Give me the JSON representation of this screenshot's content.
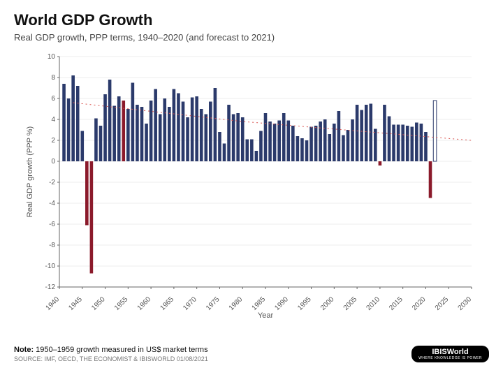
{
  "title": "World GDP Growth",
  "subtitle": "Real GDP growth, PPP terms, 1940–2020 (and forecast to 2021)",
  "chart": {
    "type": "bar",
    "x_label": "Year",
    "y_label": "Real GDP growth (PPP %)",
    "x_domain": [
      1940,
      2030
    ],
    "y_domain": [
      -12,
      10
    ],
    "y_ticks": [
      -12,
      -10,
      -8,
      -6,
      -4,
      -2,
      0,
      2,
      4,
      6,
      8,
      10
    ],
    "x_ticks": [
      1940,
      1945,
      1950,
      1955,
      1960,
      1965,
      1970,
      1975,
      1980,
      1985,
      1990,
      1995,
      2000,
      2005,
      2010,
      2015,
      2020,
      2025,
      2030
    ],
    "colors": {
      "positive": "#2b3a6b",
      "negative": "#8b1a2b",
      "forecast_fill": "#ffffff",
      "forecast_stroke": "#2b3a6b",
      "trend": "#d9534f",
      "grid": "#999999",
      "axis": "#666666",
      "background": "#ffffff"
    },
    "bar_width_ratio": 0.7,
    "trend": {
      "dash": "2,4",
      "width": 1,
      "points": [
        [
          1943,
          5.6
        ],
        [
          1980,
          3.8
        ],
        [
          2030,
          2.0
        ]
      ]
    },
    "series": [
      {
        "year": 1941,
        "v": 7.4
      },
      {
        "year": 1942,
        "v": 6.0
      },
      {
        "year": 1943,
        "v": 8.2
      },
      {
        "year": 1944,
        "v": 7.2
      },
      {
        "year": 1945,
        "v": 2.9
      },
      {
        "year": 1946,
        "v": -6.1
      },
      {
        "year": 1947,
        "v": -10.7
      },
      {
        "year": 1948,
        "v": 4.1
      },
      {
        "year": 1949,
        "v": 3.4
      },
      {
        "year": 1950,
        "v": 6.4
      },
      {
        "year": 1951,
        "v": 7.8
      },
      {
        "year": 1952,
        "v": 5.3
      },
      {
        "year": 1953,
        "v": 6.2
      },
      {
        "year": 1954,
        "v": 5.8,
        "alt": true
      },
      {
        "year": 1955,
        "v": 5.0
      },
      {
        "year": 1956,
        "v": 7.5
      },
      {
        "year": 1957,
        "v": 5.4
      },
      {
        "year": 1958,
        "v": 5.2
      },
      {
        "year": 1959,
        "v": 3.6
      },
      {
        "year": 1960,
        "v": 5.8
      },
      {
        "year": 1961,
        "v": 6.9
      },
      {
        "year": 1962,
        "v": 4.5
      },
      {
        "year": 1963,
        "v": 6.0
      },
      {
        "year": 1964,
        "v": 5.2
      },
      {
        "year": 1965,
        "v": 6.9
      },
      {
        "year": 1966,
        "v": 6.5
      },
      {
        "year": 1967,
        "v": 5.7
      },
      {
        "year": 1968,
        "v": 4.2
      },
      {
        "year": 1969,
        "v": 6.1
      },
      {
        "year": 1970,
        "v": 6.2
      },
      {
        "year": 1971,
        "v": 5.0
      },
      {
        "year": 1972,
        "v": 4.5
      },
      {
        "year": 1973,
        "v": 5.7
      },
      {
        "year": 1974,
        "v": 7.0
      },
      {
        "year": 1975,
        "v": 2.8
      },
      {
        "year": 1976,
        "v": 1.7
      },
      {
        "year": 1977,
        "v": 5.4
      },
      {
        "year": 1978,
        "v": 4.5
      },
      {
        "year": 1979,
        "v": 4.6
      },
      {
        "year": 1980,
        "v": 4.2
      },
      {
        "year": 1981,
        "v": 2.1
      },
      {
        "year": 1982,
        "v": 2.1
      },
      {
        "year": 1983,
        "v": 1.0
      },
      {
        "year": 1984,
        "v": 2.9
      },
      {
        "year": 1985,
        "v": 4.6
      },
      {
        "year": 1986,
        "v": 3.8
      },
      {
        "year": 1987,
        "v": 3.6
      },
      {
        "year": 1988,
        "v": 3.9
      },
      {
        "year": 1989,
        "v": 4.6
      },
      {
        "year": 1990,
        "v": 3.9
      },
      {
        "year": 1991,
        "v": 3.4
      },
      {
        "year": 1992,
        "v": 2.4
      },
      {
        "year": 1993,
        "v": 2.2
      },
      {
        "year": 1994,
        "v": 2.0
      },
      {
        "year": 1995,
        "v": 3.3
      },
      {
        "year": 1996,
        "v": 3.4
      },
      {
        "year": 1997,
        "v": 3.8
      },
      {
        "year": 1998,
        "v": 4.0
      },
      {
        "year": 1999,
        "v": 2.6
      },
      {
        "year": 2000,
        "v": 3.6
      },
      {
        "year": 2001,
        "v": 4.8
      },
      {
        "year": 2002,
        "v": 2.5
      },
      {
        "year": 2003,
        "v": 3.0
      },
      {
        "year": 2004,
        "v": 4.0
      },
      {
        "year": 2005,
        "v": 5.4
      },
      {
        "year": 2006,
        "v": 4.9
      },
      {
        "year": 2007,
        "v": 5.4
      },
      {
        "year": 2008,
        "v": 5.5
      },
      {
        "year": 2009,
        "v": 3.1
      },
      {
        "year": 2010,
        "v": -0.4,
        "alt": true
      },
      {
        "year": 2011,
        "v": 5.4
      },
      {
        "year": 2012,
        "v": 4.3
      },
      {
        "year": 2013,
        "v": 3.5
      },
      {
        "year": 2014,
        "v": 3.5
      },
      {
        "year": 2015,
        "v": 3.5
      },
      {
        "year": 2016,
        "v": 3.4
      },
      {
        "year": 2017,
        "v": 3.3
      },
      {
        "year": 2018,
        "v": 3.7
      },
      {
        "year": 2019,
        "v": 3.6
      },
      {
        "year": 2020,
        "v": 2.8
      },
      {
        "year": 2021,
        "v": -3.5,
        "alt": true
      },
      {
        "year": 2022,
        "v": 5.8,
        "forecast": true
      }
    ]
  },
  "footer": {
    "note_label": "Note:",
    "note_text": "1950–1959 growth measured in US$ market terms",
    "source": "SOURCE: IMF, OECD, The Economist & IBISWorld 01/08/2021",
    "logo": {
      "name": "IBISWorld",
      "tagline": "WHERE KNOWLEDGE IS POWER"
    }
  }
}
